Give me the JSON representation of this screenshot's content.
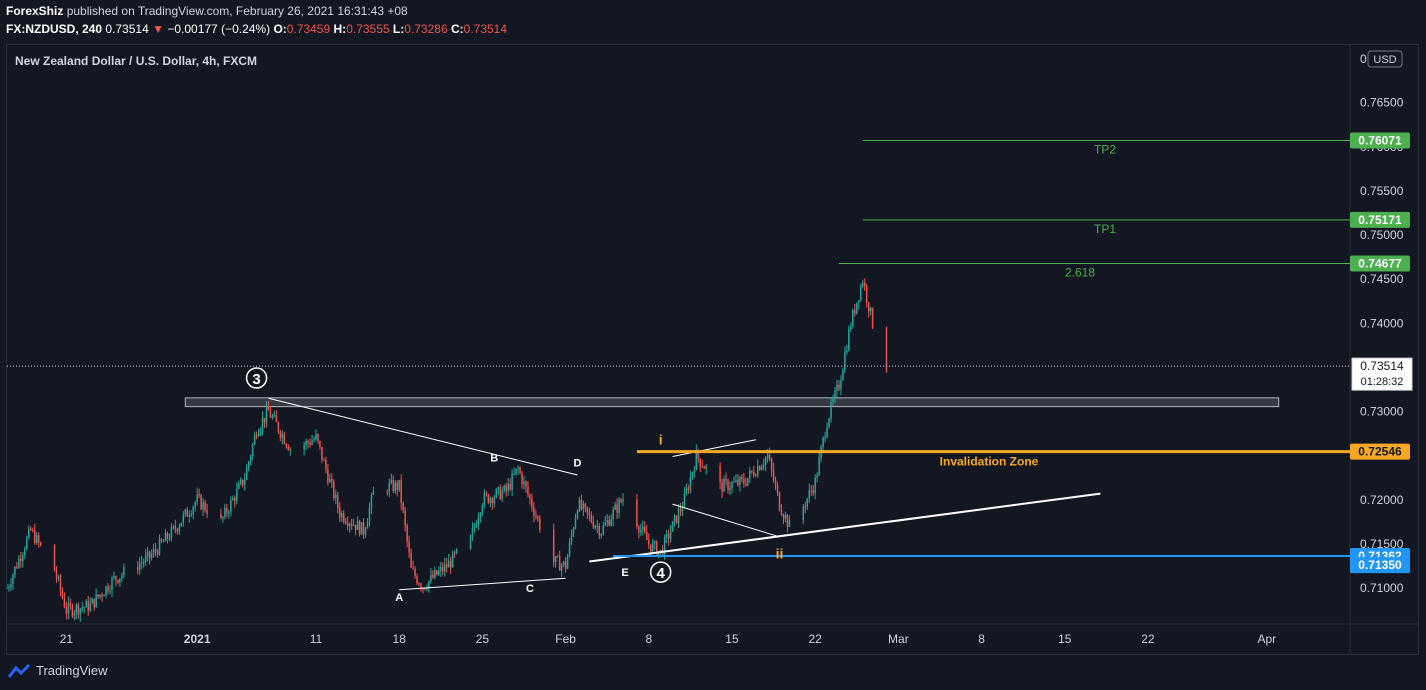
{
  "header": {
    "author": "ForexShiz",
    "published": "published on TradingView.com, February 26, 2021 16:31:43 +08",
    "symbol": "FX:NZDUSD, 240",
    "last": "0.73514",
    "arrow": "▼",
    "change": "−0.00177 (−0.24%)",
    "o_label": "O:",
    "o": "0.73459",
    "h_label": "H:",
    "h": "0.73555",
    "l_label": "L:",
    "l": "0.73286",
    "c_label": "C:",
    "c": "0.73514"
  },
  "chart_title": "New Zealand Dollar / U.S. Dollar, 4h, FXCM",
  "currency_badge": "USD",
  "footer_brand": "TradingView",
  "colors": {
    "background": "#131722",
    "up": "#26a69a",
    "down": "#ef5350",
    "tp_line": "#4caf50",
    "invalidation": "#f9a825",
    "support": "#2196f3"
  },
  "chart_data": {
    "type": "candlestick",
    "title": "New Zealand Dollar / U.S. Dollar, 4h, FXCM",
    "ylim": [
      0.707,
      0.768
    ],
    "y_ticks": [
      0.71,
      0.715,
      0.72,
      0.725,
      0.73,
      0.735,
      0.74,
      0.745,
      0.75,
      0.755,
      0.76,
      0.765
    ],
    "y_tick_labels": [
      "0.71000",
      "0.71500",
      "0.72000",
      "0.72500",
      "0.73000",
      "0.73500",
      "0.74000",
      "0.74500",
      "0.75000",
      "0.75500",
      "0.76000",
      "0.76500"
    ],
    "top_tick_label": "0",
    "x_range": [
      "2020-12-16",
      "2021-04-08"
    ],
    "x_ticks": [
      {
        "date": "2020-12-21",
        "label": "21"
      },
      {
        "date": "2021-01-01",
        "label": "2021"
      },
      {
        "date": "2021-01-11",
        "label": "11"
      },
      {
        "date": "2021-01-18",
        "label": "18"
      },
      {
        "date": "2021-01-25",
        "label": "25"
      },
      {
        "date": "2021-02-01",
        "label": "Feb"
      },
      {
        "date": "2021-02-08",
        "label": "8"
      },
      {
        "date": "2021-02-15",
        "label": "15"
      },
      {
        "date": "2021-02-22",
        "label": "22"
      },
      {
        "date": "2021-03-01",
        "label": "Mar"
      },
      {
        "date": "2021-03-08",
        "label": "8"
      },
      {
        "date": "2021-03-15",
        "label": "15"
      },
      {
        "date": "2021-03-22",
        "label": "22"
      },
      {
        "date": "2021-04-01",
        "label": "Apr"
      }
    ],
    "price_path": [
      [
        "2020-12-16",
        0.71
      ],
      [
        "2020-12-18",
        0.7165
      ],
      [
        "2020-12-20",
        0.712
      ],
      [
        "2020-12-21",
        0.7075
      ],
      [
        "2020-12-23",
        0.708
      ],
      [
        "2020-12-25",
        0.711
      ],
      [
        "2020-12-28",
        0.7135
      ],
      [
        "2020-12-30",
        0.7165
      ],
      [
        "2021-01-01",
        0.72
      ],
      [
        "2021-01-03",
        0.7175
      ],
      [
        "2021-01-05",
        0.7225
      ],
      [
        "2021-01-06",
        0.728
      ],
      [
        "2021-01-07",
        0.73
      ],
      [
        "2021-01-09",
        0.7255
      ],
      [
        "2021-01-11",
        0.727
      ],
      [
        "2021-01-13",
        0.7185
      ],
      [
        "2021-01-15",
        0.7165
      ],
      [
        "2021-01-16",
        0.7215
      ],
      [
        "2021-01-18",
        0.7215
      ],
      [
        "2021-01-19",
        0.712
      ],
      [
        "2021-01-20",
        0.7102
      ],
      [
        "2021-01-22",
        0.7125
      ],
      [
        "2021-01-24",
        0.7155
      ],
      [
        "2021-01-25",
        0.72
      ],
      [
        "2021-01-27",
        0.721
      ],
      [
        "2021-01-28",
        0.7235
      ],
      [
        "2021-01-30",
        0.7165
      ],
      [
        "2021-01-31",
        0.713
      ],
      [
        "2021-02-01",
        0.7125
      ],
      [
        "2021-02-02",
        0.7195
      ],
      [
        "2021-02-04",
        0.7165
      ],
      [
        "2021-02-06",
        0.7205
      ],
      [
        "2021-02-07",
        0.7175
      ],
      [
        "2021-02-08",
        0.715
      ],
      [
        "2021-02-09",
        0.714
      ],
      [
        "2021-02-11",
        0.72
      ],
      [
        "2021-02-12",
        0.725
      ],
      [
        "2021-02-14",
        0.7215
      ],
      [
        "2021-02-16",
        0.722
      ],
      [
        "2021-02-18",
        0.725
      ],
      [
        "2021-02-19",
        0.7195
      ],
      [
        "2021-02-20",
        0.7165
      ],
      [
        "2021-02-22",
        0.722
      ],
      [
        "2021-02-23",
        0.729
      ],
      [
        "2021-02-24",
        0.733
      ],
      [
        "2021-02-25",
        0.74
      ],
      [
        "2021-02-26",
        0.745
      ],
      [
        "2021-02-27",
        0.739
      ],
      [
        "2021-02-28",
        0.7351
      ]
    ],
    "horizontal_levels": [
      {
        "price": 0.76071,
        "label": "0.76071",
        "text": "TP2",
        "color": "#4caf50",
        "x_from": "2021-02-26"
      },
      {
        "price": 0.75171,
        "label": "0.75171",
        "text": "TP1",
        "color": "#4caf50",
        "x_from": "2021-02-26"
      },
      {
        "price": 0.74677,
        "label": "0.74677",
        "text": "2.618",
        "color": "#4caf50",
        "x_from": "2021-02-24"
      },
      {
        "price": 0.72546,
        "label": "0.72546",
        "text": "Invalidation Zone",
        "color": "#f9a825",
        "x_from": "2021-02-07"
      },
      {
        "price": 0.71362,
        "label": "0.71362",
        "text": "",
        "color": "#2196f3",
        "x_from": "2021-02-05"
      }
    ],
    "extra_price_labels": [
      {
        "price": 0.7135,
        "label": "0.71350",
        "color": "#2196f3"
      }
    ],
    "current_price": {
      "price": 0.73514,
      "label": "0.73514",
      "countdown": "01:28:32"
    },
    "resistance_box": {
      "from": "2020-12-31",
      "to": "2021-04-02",
      "top": 0.73155,
      "bottom": 0.73055
    },
    "trendlines": [
      {
        "from": [
          "2021-01-07",
          0.7315
        ],
        "to": [
          "2021-02-02",
          0.7228
        ],
        "width": 1
      },
      {
        "from": [
          "2021-01-18",
          0.7098
        ],
        "to": [
          "2021-02-01",
          0.7111
        ],
        "width": 1
      },
      {
        "from": [
          "2021-02-10",
          0.7249
        ],
        "to": [
          "2021-02-17",
          0.7268
        ],
        "width": 1
      },
      {
        "from": [
          "2021-02-10",
          0.7195
        ],
        "to": [
          "2021-02-19",
          0.7158
        ],
        "width": 1
      },
      {
        "from": [
          "2021-02-03",
          0.713
        ],
        "to": [
          "2021-03-18",
          0.7207
        ],
        "width": 2
      }
    ],
    "wave_labels": [
      {
        "text": "3",
        "date": "2021-01-06",
        "price": 0.7338,
        "circled": true,
        "color": "#ffffff"
      },
      {
        "text": "B",
        "date": "2021-01-26",
        "price": 0.7248,
        "color": "#ffffff"
      },
      {
        "text": "D",
        "date": "2021-02-02",
        "price": 0.7242,
        "color": "#ffffff"
      },
      {
        "text": "A",
        "date": "2021-01-18",
        "price": 0.709,
        "color": "#ffffff"
      },
      {
        "text": "C",
        "date": "2021-01-29",
        "price": 0.71,
        "color": "#ffffff"
      },
      {
        "text": "E",
        "date": "2021-02-06",
        "price": 0.7118,
        "color": "#ffffff"
      },
      {
        "text": "4",
        "date": "2021-02-09",
        "price": 0.7118,
        "circled": true,
        "color": "#ffffff"
      },
      {
        "text": "i",
        "date": "2021-02-09",
        "price": 0.7267,
        "color": "#f9a825"
      },
      {
        "text": "ii",
        "date": "2021-02-19",
        "price": 0.7138,
        "color": "#f9a825"
      }
    ]
  }
}
